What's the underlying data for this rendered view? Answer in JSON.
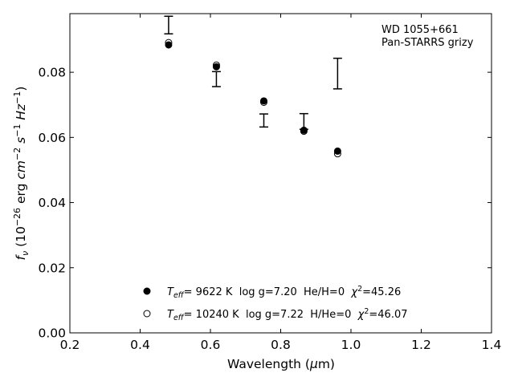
{
  "chart_data": {
    "type": "scatter",
    "annotation_lines": [
      "WD 1055+661",
      "Pan-STARRS grizy"
    ],
    "legend_placement": "lower-center",
    "xlim": [
      0.2,
      1.4
    ],
    "ylim": [
      0.0,
      0.098
    ],
    "x_ticks": [
      0.2,
      0.4,
      0.6,
      0.8,
      1.0,
      1.2,
      1.4
    ],
    "x_tick_labels": [
      "0.2",
      "0.4",
      "0.6",
      "0.8",
      "1.0",
      "1.2",
      "1.4"
    ],
    "y_ticks": [
      0.0,
      0.02,
      0.04,
      0.06,
      0.08
    ],
    "y_tick_labels": [
      "0.00",
      "0.02",
      "0.04",
      "0.06",
      "0.08"
    ],
    "grid": false,
    "observed": {
      "x": [
        0.481,
        0.617,
        0.752,
        0.866,
        0.962
      ],
      "y": [
        0.0945,
        0.0779,
        0.0652,
        0.0649,
        0.0796
      ],
      "yerr": [
        0.0027,
        0.0023,
        0.002,
        0.0024,
        0.0047
      ]
    },
    "series": [
      {
        "marker": "filled-circle",
        "x": [
          0.481,
          0.617,
          0.752,
          0.866,
          0.962
        ],
        "y": [
          0.0884,
          0.0817,
          0.0712,
          0.0622,
          0.0558
        ]
      },
      {
        "marker": "open-circle",
        "x": [
          0.481,
          0.617,
          0.752,
          0.866,
          0.962
        ],
        "y": [
          0.0891,
          0.0822,
          0.0708,
          0.0619,
          0.055
        ]
      }
    ],
    "legend": [
      {
        "marker": "filled-circle",
        "teff_value": "=  9622 K",
        "rest": "  log g=7.20  He/H=0  ",
        "chi_value": "=45.26"
      },
      {
        "marker": "open-circle",
        "teff_value": "= 10240 K",
        "rest": "  log g=7.22  H/He=0  ",
        "chi_value": "=46.07"
      }
    ],
    "xlabel": {
      "pre": "Wavelength (",
      "mu": "μ",
      "post": "m)"
    },
    "ylabel": {
      "f": "f",
      "nu": "ν",
      "a": " (10",
      "e1": "−26",
      "b": " erg ",
      "cm": "cm",
      "e2": "−2",
      "s": " s",
      "e3": "−1",
      "hz": " Hz",
      "e4": "−1",
      "c": ")"
    }
  }
}
